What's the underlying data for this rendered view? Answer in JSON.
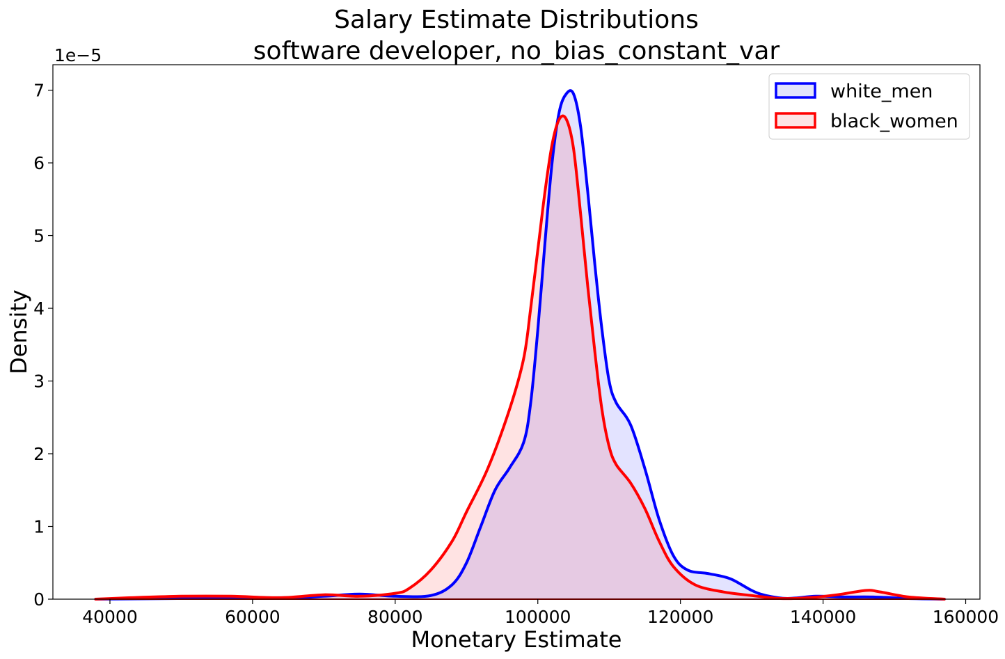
{
  "chart_data": {
    "type": "area",
    "title": "Salary Estimate Distributions",
    "subtitle": "software developer, no_bias_constant_var",
    "xlabel": "Monetary Estimate",
    "ylabel": "Density",
    "y_scale_label": "1e−5",
    "xlim": [
      32000,
      162000
    ],
    "ylim": [
      0,
      7.35
    ],
    "x_ticks": [
      40000,
      60000,
      80000,
      100000,
      120000,
      140000,
      160000
    ],
    "x_tick_labels": [
      "40000",
      "60000",
      "80000",
      "100000",
      "120000",
      "140000",
      "160000"
    ],
    "y_ticks": [
      0,
      1,
      2,
      3,
      4,
      5,
      6,
      7
    ],
    "y_tick_labels": [
      "0",
      "1",
      "2",
      "3",
      "4",
      "5",
      "6",
      "7"
    ],
    "grid": false,
    "legend_position": "top-right",
    "series": [
      {
        "name": "white_men",
        "color": "#0000ff",
        "fill": "#e3e4fb",
        "points": [
          [
            38000,
            0
          ],
          [
            50000,
            0.01
          ],
          [
            65000,
            0.02
          ],
          [
            70000,
            0.04
          ],
          [
            75000,
            0.07
          ],
          [
            80000,
            0.04
          ],
          [
            85000,
            0.05
          ],
          [
            88000,
            0.2
          ],
          [
            90000,
            0.5
          ],
          [
            92000,
            1.0
          ],
          [
            94000,
            1.5
          ],
          [
            96000,
            1.8
          ],
          [
            98000,
            2.15
          ],
          [
            99000,
            2.7
          ],
          [
            100000,
            3.7
          ],
          [
            101000,
            4.9
          ],
          [
            102000,
            6.0
          ],
          [
            103000,
            6.7
          ],
          [
            104000,
            6.95
          ],
          [
            105000,
            6.95
          ],
          [
            106000,
            6.5
          ],
          [
            107000,
            5.6
          ],
          [
            108000,
            4.6
          ],
          [
            109000,
            3.7
          ],
          [
            110000,
            3.0
          ],
          [
            111000,
            2.7
          ],
          [
            113000,
            2.4
          ],
          [
            115000,
            1.8
          ],
          [
            117000,
            1.1
          ],
          [
            119000,
            0.6
          ],
          [
            121000,
            0.4
          ],
          [
            124000,
            0.35
          ],
          [
            127000,
            0.28
          ],
          [
            130000,
            0.12
          ],
          [
            132000,
            0.05
          ],
          [
            135000,
            0.01
          ],
          [
            139000,
            0.04
          ],
          [
            143000,
            0.03
          ],
          [
            147000,
            0.03
          ],
          [
            152000,
            0.01
          ],
          [
            157000,
            0
          ]
        ]
      },
      {
        "name": "black_women",
        "color": "#ff0000",
        "fill": "#fde4e5",
        "points": [
          [
            38000,
            0
          ],
          [
            43000,
            0.02
          ],
          [
            50000,
            0.04
          ],
          [
            57000,
            0.04
          ],
          [
            64000,
            0.02
          ],
          [
            70000,
            0.06
          ],
          [
            75000,
            0.04
          ],
          [
            80000,
            0.08
          ],
          [
            82000,
            0.15
          ],
          [
            85000,
            0.4
          ],
          [
            88000,
            0.8
          ],
          [
            90000,
            1.2
          ],
          [
            93000,
            1.8
          ],
          [
            96000,
            2.6
          ],
          [
            98000,
            3.3
          ],
          [
            99000,
            4.0
          ],
          [
            100000,
            4.8
          ],
          [
            101000,
            5.6
          ],
          [
            102000,
            6.25
          ],
          [
            103000,
            6.6
          ],
          [
            104000,
            6.6
          ],
          [
            105000,
            6.2
          ],
          [
            106000,
            5.3
          ],
          [
            107000,
            4.3
          ],
          [
            108000,
            3.4
          ],
          [
            109000,
            2.6
          ],
          [
            110000,
            2.1
          ],
          [
            111000,
            1.85
          ],
          [
            113000,
            1.6
          ],
          [
            115000,
            1.25
          ],
          [
            117000,
            0.8
          ],
          [
            119000,
            0.45
          ],
          [
            122000,
            0.2
          ],
          [
            126000,
            0.1
          ],
          [
            130000,
            0.05
          ],
          [
            134000,
            0.01
          ],
          [
            138000,
            0.02
          ],
          [
            142000,
            0.06
          ],
          [
            146000,
            0.12
          ],
          [
            148000,
            0.1
          ],
          [
            152000,
            0.03
          ],
          [
            157000,
            0
          ]
        ]
      }
    ]
  }
}
